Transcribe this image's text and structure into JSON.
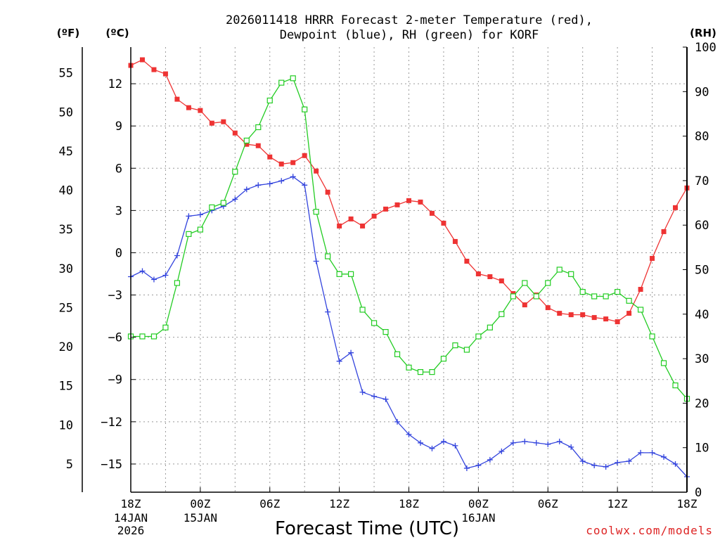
{
  "chart_data": {
    "type": "line",
    "title_line1": "2026011418 HRRR Forecast 2-meter Temperature (red),",
    "title_line2": "Dewpoint (blue), RH (green) for KORF",
    "xlabel": "Forecast Time (UTC)",
    "credit": "coolwx.com/models",
    "axis_labels": {
      "fahrenheit": "(ºF)",
      "celsius": "(ºC)",
      "rh": "(RH)"
    },
    "x_range": [
      0,
      48
    ],
    "celsius_range": [
      -17,
      14.6
    ],
    "rh_range": [
      0,
      100
    ],
    "fahrenheit_range": [
      1.4,
      58.3
    ],
    "celsius_ticks": [
      {
        "value": 12,
        "label": "12"
      },
      {
        "value": 9,
        "label": "9"
      },
      {
        "value": 6,
        "label": "6"
      },
      {
        "value": 3,
        "label": "3"
      },
      {
        "value": 0,
        "label": "0"
      },
      {
        "value": -3,
        "label": "−3"
      },
      {
        "value": -6,
        "label": "−6"
      },
      {
        "value": -9,
        "label": "−9"
      },
      {
        "value": -12,
        "label": "−12"
      },
      {
        "value": -15,
        "label": "−15"
      }
    ],
    "fahrenheit_ticks": [
      {
        "value": 55,
        "label": "55"
      },
      {
        "value": 50,
        "label": "50"
      },
      {
        "value": 45,
        "label": "45"
      },
      {
        "value": 40,
        "label": "40"
      },
      {
        "value": 35,
        "label": "35"
      },
      {
        "value": 30,
        "label": "30"
      },
      {
        "value": 25,
        "label": "25"
      },
      {
        "value": 20,
        "label": "20"
      },
      {
        "value": 15,
        "label": "15"
      },
      {
        "value": 10,
        "label": "10"
      },
      {
        "value": 5,
        "label": "5"
      }
    ],
    "rh_ticks": [
      {
        "value": 100,
        "label": "100"
      },
      {
        "value": 90,
        "label": "90"
      },
      {
        "value": 80,
        "label": "80"
      },
      {
        "value": 70,
        "label": "70"
      },
      {
        "value": 60,
        "label": "60"
      },
      {
        "value": 50,
        "label": "50"
      },
      {
        "value": 40,
        "label": "40"
      },
      {
        "value": 30,
        "label": "30"
      },
      {
        "value": 20,
        "label": "20"
      },
      {
        "value": 10,
        "label": "10"
      },
      {
        "value": 0,
        "label": "0"
      }
    ],
    "x_ticks": [
      {
        "hour": 0,
        "label": "18Z",
        "sub": [
          "14JAN",
          "2026"
        ]
      },
      {
        "hour": 6,
        "label": "00Z",
        "sub": [
          "15JAN"
        ]
      },
      {
        "hour": 12,
        "label": "06Z",
        "sub": []
      },
      {
        "hour": 18,
        "label": "12Z",
        "sub": []
      },
      {
        "hour": 24,
        "label": "18Z",
        "sub": []
      },
      {
        "hour": 30,
        "label": "00Z",
        "sub": [
          "16JAN"
        ]
      },
      {
        "hour": 36,
        "label": "06Z",
        "sub": []
      },
      {
        "hour": 42,
        "label": "12Z",
        "sub": []
      },
      {
        "hour": 48,
        "label": "18Z",
        "sub": []
      }
    ],
    "series": [
      {
        "name": "Temperature",
        "unit": "C",
        "color": "#ee3333",
        "marker": "filled-square",
        "values": [
          13.3,
          13.7,
          13.0,
          12.7,
          10.9,
          10.3,
          10.1,
          9.2,
          9.3,
          8.5,
          7.7,
          7.6,
          6.8,
          6.3,
          6.4,
          6.9,
          5.8,
          4.3,
          1.9,
          2.4,
          1.9,
          2.6,
          3.1,
          3.4,
          3.7,
          3.6,
          2.8,
          2.1,
          0.8,
          -0.6,
          -1.5,
          -1.7,
          -2.0,
          -2.9,
          -3.7,
          -3.0,
          -3.9,
          -4.3,
          -4.4,
          -4.4,
          -4.6,
          -4.7,
          -4.9,
          -4.3,
          -2.6,
          -0.4,
          1.5,
          3.2,
          4.6
        ]
      },
      {
        "name": "Dewpoint",
        "unit": "C",
        "color": "#3344dd",
        "marker": "plus",
        "values": [
          -1.7,
          -1.3,
          -1.9,
          -1.6,
          -0.2,
          2.6,
          2.7,
          3.0,
          3.3,
          3.8,
          4.5,
          4.8,
          4.9,
          5.1,
          5.4,
          4.8,
          -0.6,
          -4.2,
          -7.7,
          -7.1,
          -9.9,
          -10.2,
          -10.4,
          -12.0,
          -12.9,
          -13.5,
          -13.9,
          -13.4,
          -13.7,
          -15.3,
          -15.1,
          -14.7,
          -14.1,
          -13.5,
          -13.4,
          -13.5,
          -13.6,
          -13.4,
          -13.8,
          -14.8,
          -15.1,
          -15.2,
          -14.9,
          -14.8,
          -14.2,
          -14.2,
          -14.5,
          -15.0,
          -15.9
        ]
      },
      {
        "name": "RH",
        "unit": "%",
        "color": "#22cc22",
        "marker": "open-square",
        "values": [
          35,
          35,
          35,
          37,
          47,
          58,
          59,
          64,
          65,
          72,
          79,
          82,
          88,
          92,
          93,
          86,
          63,
          53,
          49,
          49,
          41,
          38,
          36,
          31,
          28,
          27,
          27,
          30,
          33,
          32,
          35,
          37,
          40,
          44,
          47,
          44,
          47,
          50,
          49,
          45,
          44,
          44,
          45,
          43,
          41,
          35,
          29,
          24,
          21
        ]
      }
    ]
  }
}
